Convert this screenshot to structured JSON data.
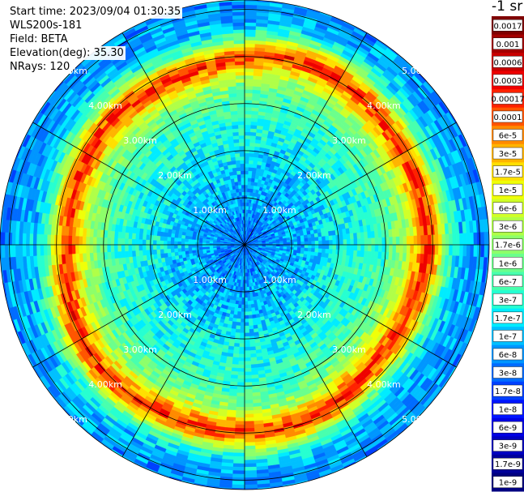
{
  "header": {
    "start_time": "Start time: 2023/09/04 01:30:35",
    "instrument": "WLS200s-181",
    "field": "Field: BETA",
    "elevation": "Elevation(deg): 35.30",
    "nrays": "NRays: 120"
  },
  "colorbar": {
    "title": "-1 sr",
    "labels": [
      "0.0017",
      "0.001",
      "0.0006",
      "0.0003",
      "0.00017",
      "0.0001",
      "6e-5",
      "3e-5",
      "1.7e-5",
      "1e-5",
      "6e-6",
      "3e-6",
      "1.7e-6",
      "1e-6",
      "6e-7",
      "3e-7",
      "1.7e-7",
      "1e-7",
      "6e-8",
      "3e-8",
      "1.7e-8",
      "1e-8",
      "6e-9",
      "3e-9",
      "1.7e-9",
      "1e-9"
    ],
    "colors": [
      "#7f0000",
      "#a30000",
      "#c80000",
      "#ee0000",
      "#ff2200",
      "#ff5500",
      "#ff8a00",
      "#ffb400",
      "#ffdf00",
      "#f0ff08",
      "#d0ff28",
      "#b0ff48",
      "#8dff6a",
      "#6bff8c",
      "#48ffae",
      "#26ffd1",
      "#00ecff",
      "#00c0ff",
      "#0096ff",
      "#006cff",
      "#0040ff",
      "#0014ff",
      "#0000e4",
      "#0000bf",
      "#00009a",
      "#000080"
    ]
  },
  "chart_data": {
    "type": "heatmap",
    "projection": "polar-ppi",
    "field": "BETA",
    "units": "-1 sr",
    "elevation_deg": 35.3,
    "nrays": 120,
    "range_rings_km": [
      1,
      2,
      3,
      4,
      5
    ],
    "ring_labels": [
      "1.00km",
      "2.00km",
      "3.00km",
      "4.00km",
      "5.00km"
    ],
    "radial_spokes_deg": [
      0,
      30,
      60,
      90,
      120,
      150,
      180,
      210,
      240,
      270,
      300,
      330
    ],
    "max_range_km": 5.2,
    "color_scale": "log",
    "value_range": [
      1e-09,
      0.0017
    ],
    "profile": {
      "range_km": [
        0.0,
        0.5,
        1.0,
        1.5,
        2.0,
        2.5,
        3.0,
        3.4,
        3.7,
        3.9,
        4.1,
        4.3,
        4.6,
        5.0,
        5.2
      ],
      "beta": [
        3e-08,
        5e-08,
        8e-08,
        1e-07,
        2e-07,
        3e-07,
        5e-07,
        2e-06,
        3e-05,
        0.0002,
        3e-05,
        1e-06,
        1e-07,
        6e-08,
        5e-08
      ]
    }
  }
}
